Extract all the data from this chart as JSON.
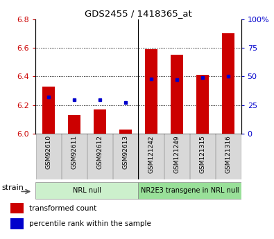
{
  "title": "GDS2455 / 1418365_at",
  "samples": [
    "GSM92610",
    "GSM92611",
    "GSM92612",
    "GSM92613",
    "GSM121242",
    "GSM121249",
    "GSM121315",
    "GSM121316"
  ],
  "red_values": [
    6.33,
    6.13,
    6.17,
    6.03,
    6.59,
    6.55,
    6.41,
    6.7
  ],
  "blue_values_pct": [
    32,
    30,
    30,
    27,
    48,
    47,
    49,
    50
  ],
  "ylim_left": [
    6.0,
    6.8
  ],
  "ylim_right": [
    0,
    100
  ],
  "yticks_left": [
    6.0,
    6.2,
    6.4,
    6.6,
    6.8
  ],
  "yticks_right": [
    0,
    25,
    50,
    75,
    100
  ],
  "groups": [
    {
      "label": "NRL null",
      "start": 0,
      "end": 3,
      "color": "#ccf0cc"
    },
    {
      "label": "NR2E3 transgene in NRL null",
      "start": 4,
      "end": 7,
      "color": "#99e099"
    }
  ],
  "strain_label": "strain",
  "legend_items": [
    {
      "label": "transformed count",
      "color": "#cc0000"
    },
    {
      "label": "percentile rank within the sample",
      "color": "#0000cc"
    }
  ],
  "bar_color": "#cc0000",
  "dot_color": "#0000cc",
  "left_label_color": "#cc0000",
  "right_label_color": "#0000cc",
  "background_color": "#ffffff",
  "xtick_bg_color": "#d8d8d8",
  "xtick_edge_color": "#aaaaaa",
  "bar_width": 0.5,
  "separator_col": 3.5,
  "grid_yticks": [
    6.2,
    6.4,
    6.6
  ]
}
